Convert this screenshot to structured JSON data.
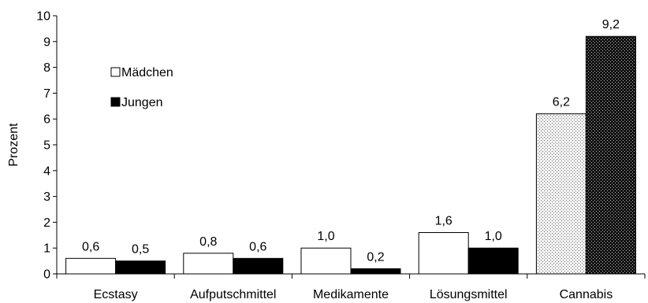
{
  "chart_data": {
    "type": "bar",
    "title": "",
    "xlabel": "",
    "ylabel": "Prozent",
    "ylim": [
      0,
      10
    ],
    "yticks": [
      "0",
      "1",
      "2",
      "3",
      "4",
      "5",
      "6",
      "7",
      "8",
      "9",
      "10"
    ],
    "categories": [
      "Ecstasy",
      "Aufputschmittel",
      "Medikamente",
      "Lösungsmittel",
      "Cannabis"
    ],
    "series": [
      {
        "name": "Mädchen",
        "values": [
          0.6,
          0.8,
          1.0,
          1.6,
          6.2
        ],
        "labels": [
          "0,6",
          "0,8",
          "1,0",
          "1,6",
          "6,2"
        ],
        "color": "#ffffff"
      },
      {
        "name": "Jungen",
        "values": [
          0.5,
          0.6,
          0.2,
          1.0,
          9.2
        ],
        "labels": [
          "0,5",
          "0,6",
          "0,2",
          "1,0",
          "9,2"
        ],
        "color": "#000000"
      }
    ],
    "highlight_category": "Cannabis",
    "highlight_pattern": "dotted",
    "grid": false,
    "legend_position": "top-left"
  }
}
